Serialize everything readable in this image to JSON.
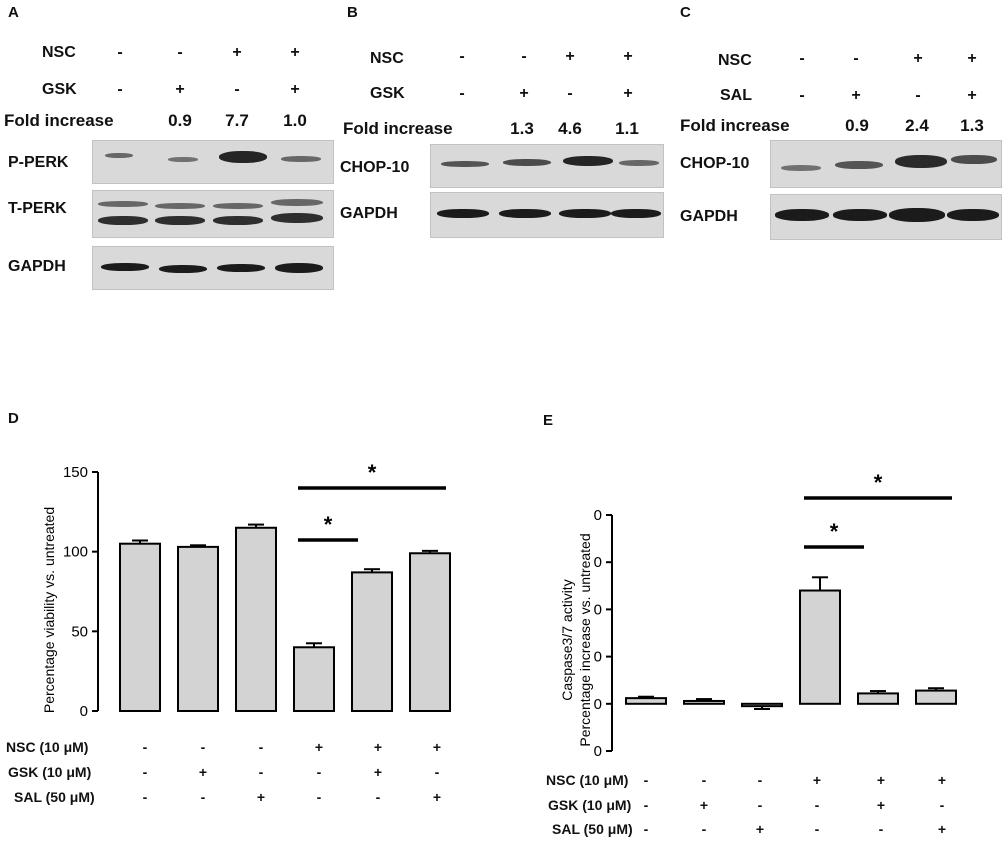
{
  "panels": {
    "A": {
      "letter": "A",
      "rows": [
        {
          "label": "NSC",
          "signs": [
            "-",
            "-",
            "+",
            "+"
          ]
        },
        {
          "label": "GSK",
          "signs": [
            "-",
            "+",
            "-",
            "+"
          ]
        }
      ],
      "fold_label": "Fold increase",
      "fold_values": [
        "0.9",
        "7.7",
        "1.0"
      ],
      "blots": [
        "P-PERK",
        "T-PERK",
        "GAPDH"
      ]
    },
    "B": {
      "letter": "B",
      "rows": [
        {
          "label": "NSC",
          "signs": [
            "-",
            "-",
            "+",
            "+"
          ]
        },
        {
          "label": "GSK",
          "signs": [
            "-",
            "+",
            "-",
            "+"
          ]
        }
      ],
      "fold_label": "Fold increase",
      "fold_values": [
        "1.3",
        "4.6",
        "1.1"
      ],
      "blots": [
        "CHOP-10",
        "GAPDH"
      ]
    },
    "C": {
      "letter": "C",
      "rows": [
        {
          "label": "NSC",
          "signs": [
            "-",
            "-",
            "+",
            "+"
          ]
        },
        {
          "label": "SAL",
          "signs": [
            "-",
            "+",
            "-",
            "+"
          ]
        }
      ],
      "fold_label": "Fold increase",
      "fold_values": [
        "0.9",
        "2.4",
        "1.3"
      ],
      "blots": [
        "CHOP-10",
        "GAPDH"
      ]
    },
    "D": {
      "letter": "D"
    },
    "E": {
      "letter": "E"
    }
  },
  "treatments": {
    "nsc_label": "NSC (10 μM)",
    "gsk_label": "GSK (10 μM)",
    "sal_label": "SAL (50 μM)",
    "nsc": [
      "-",
      "-",
      "-",
      "+",
      "+",
      "+"
    ],
    "gsk": [
      "-",
      "+",
      "-",
      "-",
      "+",
      "-"
    ],
    "sal": [
      "-",
      "-",
      "+",
      "-",
      "-",
      "+"
    ]
  },
  "colors": {
    "bar_fill": "#d3d3d3",
    "stroke": "#000000",
    "blot_bg": "#d9d9d9",
    "band": "#1b1b1b"
  },
  "chart_data": [
    {
      "type": "bar",
      "panel": "D",
      "categories": [
        "1",
        "2",
        "3",
        "4",
        "5",
        "6"
      ],
      "values": [
        105,
        103,
        115,
        40,
        87,
        99
      ],
      "errors": [
        2,
        1,
        2,
        2.5,
        2,
        1.5
      ],
      "ylabel": "Percentage viability vs. untreated",
      "xlabel": "",
      "ylim": [
        0,
        150
      ],
      "yticks": [
        "0",
        "50",
        "100",
        "150"
      ],
      "significance": [
        {
          "from": 4,
          "to": 5,
          "label": "*"
        },
        {
          "from": 4,
          "to": 6,
          "label": "*"
        }
      ]
    },
    {
      "type": "bar",
      "panel": "E",
      "categories": [
        "1",
        "2",
        "3",
        "4",
        "5",
        "6"
      ],
      "values": [
        0.12,
        0.06,
        -0.05,
        2.4,
        0.22,
        0.28
      ],
      "errors": [
        0.03,
        0.04,
        0.06,
        0.28,
        0.05,
        0.05
      ],
      "ylabel_lines": [
        "Caspase3/7 activity",
        "Percentage increase vs. untreated"
      ],
      "xlabel": "",
      "ylim": [
        -1,
        4
      ],
      "yticks": [
        "0",
        "0",
        "0",
        "0",
        "0",
        "0"
      ],
      "significance": [
        {
          "from": 4,
          "to": 5,
          "label": "*"
        },
        {
          "from": 4,
          "to": 6,
          "label": "*"
        }
      ]
    }
  ]
}
